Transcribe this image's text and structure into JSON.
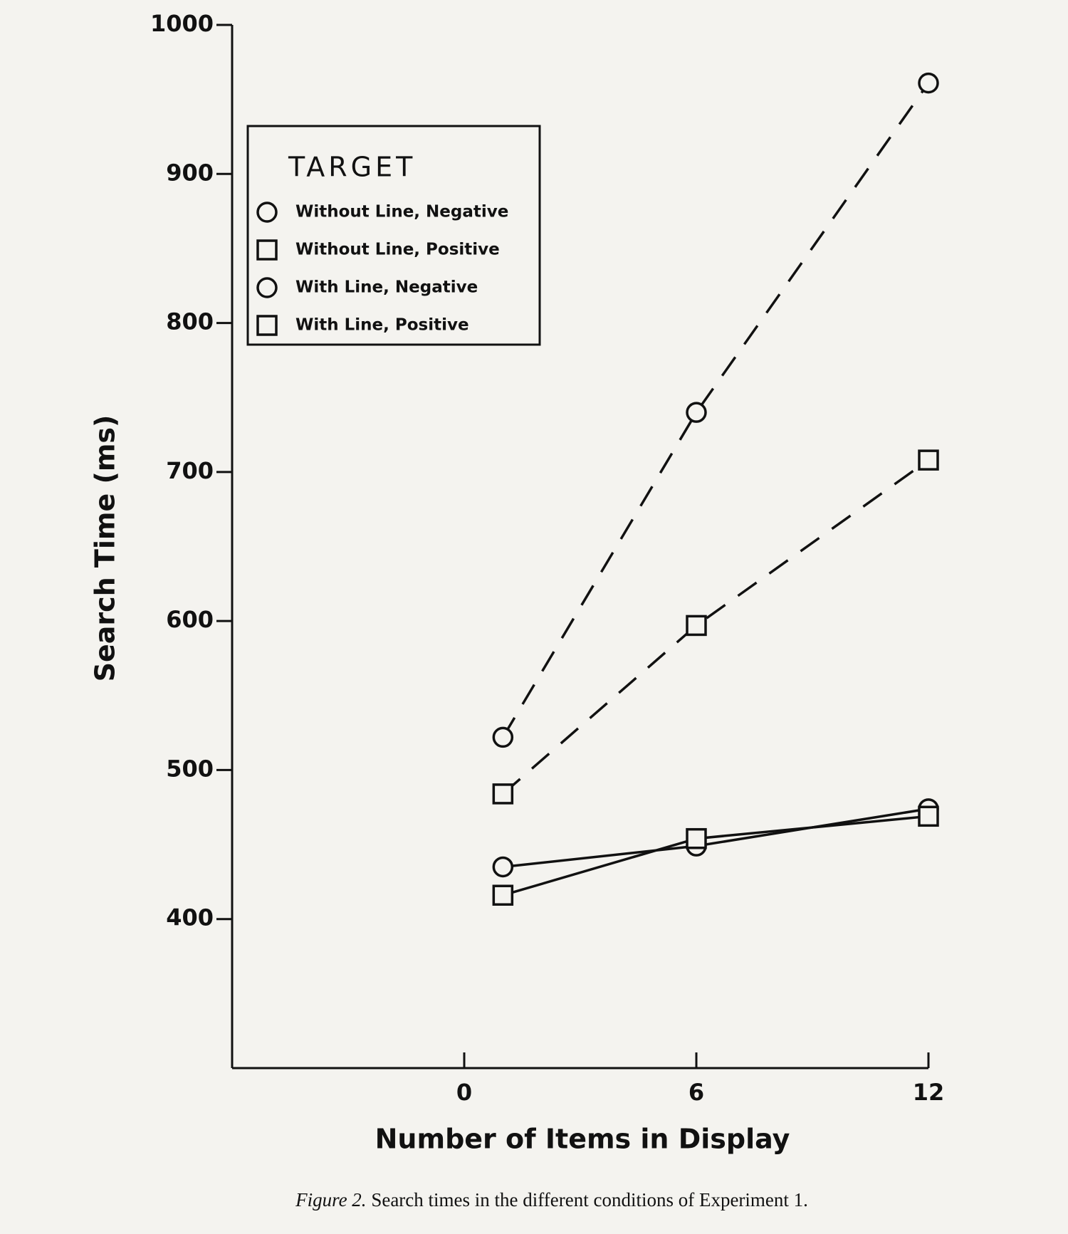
{
  "chart_data": {
    "type": "line",
    "x_label": "Number of Items in Display",
    "y_label": "Search Time (ms)",
    "caption_label": "Figure 2.",
    "caption": "Search times in the different conditions of Experiment 1.",
    "legend_title": "TARGET",
    "x": [
      1,
      6,
      12
    ],
    "series": [
      {
        "name": "Without Line, Negative",
        "color": "#111111",
        "marker": "circle",
        "dashed": true,
        "values": [
          522,
          740,
          961
        ]
      },
      {
        "name": "Without Line, Positive",
        "color": "#111111",
        "marker": "square",
        "dashed": true,
        "values": [
          484,
          597,
          708
        ]
      },
      {
        "name": "With Line, Negative",
        "color": "#111111",
        "marker": "circle",
        "dashed": false,
        "values": [
          435,
          449,
          474
        ]
      },
      {
        "name": "With Line, Positive",
        "color": "#111111",
        "marker": "square",
        "dashed": false,
        "values": [
          416,
          454,
          469
        ]
      }
    ],
    "xlim": [
      -6,
      12
    ],
    "xticks": [
      0,
      6,
      12
    ],
    "ylim": [
      300,
      1000
    ],
    "yticks": [
      400,
      500,
      600,
      700,
      800,
      900,
      1000
    ]
  }
}
